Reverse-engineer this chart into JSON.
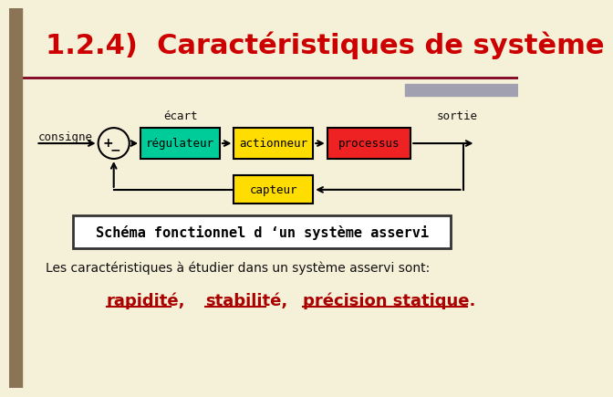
{
  "background_color": "#f5f0d8",
  "left_bar_color": "#8b7355",
  "title": "1.2.4)  Caractéristiques de système",
  "title_color": "#cc0000",
  "title_fontsize": 22,
  "divider_color": "#800020",
  "gray_bar_color": "#a0a0b0",
  "box_regulateur_color": "#00cc99",
  "box_actionneur_color": "#ffdd00",
  "box_processus_color": "#ee2222",
  "box_capteur_color": "#ffdd00",
  "box_schema_bg": "#ffffff",
  "box_schema_border": "#333333",
  "text_color_dark": "#111111",
  "text_color_red": "#aa0000",
  "text_consigne": "consigne",
  "text_ecart": "écart",
  "text_sortie": "sortie",
  "text_regulateur": "régulateur",
  "text_actionneur": "actionneur",
  "text_processus": "processus",
  "text_capteur": "capteur",
  "text_schema": "Schéma fonctionnel d ‘un système asservi",
  "text_intro": "Les caractéristiques à étudier dans un système asservi sont:",
  "text_rapidite": "rapidité",
  "text_stabilite": "stabilité",
  "text_precision": "précision statique",
  "text_period": "."
}
